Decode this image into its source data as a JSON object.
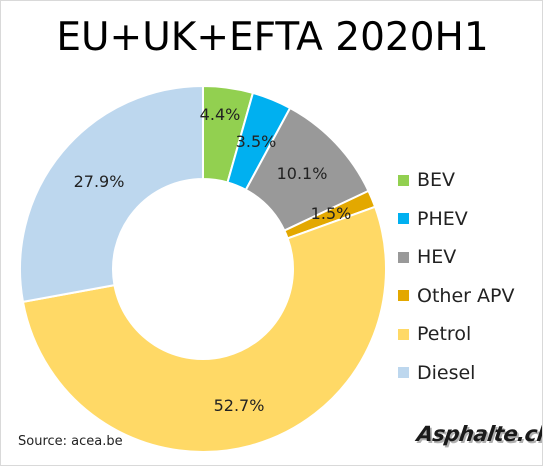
{
  "title": "EU+UK+EFTA 2020H1",
  "source": "Source: acea.be",
  "logo_text": "Asphalte.ch",
  "chart_data": {
    "type": "pie",
    "variant": "donut",
    "title": "EU+UK+EFTA 2020H1",
    "legend_position": "right",
    "slices": [
      {
        "label": "BEV",
        "value": 4.4,
        "display": "4.4%",
        "color": "#92d050"
      },
      {
        "label": "PHEV",
        "value": 3.5,
        "display": "3.5%",
        "color": "#00b0f0"
      },
      {
        "label": "HEV",
        "value": 10.1,
        "display": "10.1%",
        "color": "#999999"
      },
      {
        "label": "Other APV",
        "value": 1.5,
        "display": "1.5%",
        "color": "#e3a800"
      },
      {
        "label": "Petrol",
        "value": 52.7,
        "display": "52.7%",
        "color": "#ffd966"
      },
      {
        "label": "Diesel",
        "value": 27.9,
        "display": "27.9%",
        "color": "#bdd7ee"
      }
    ]
  }
}
